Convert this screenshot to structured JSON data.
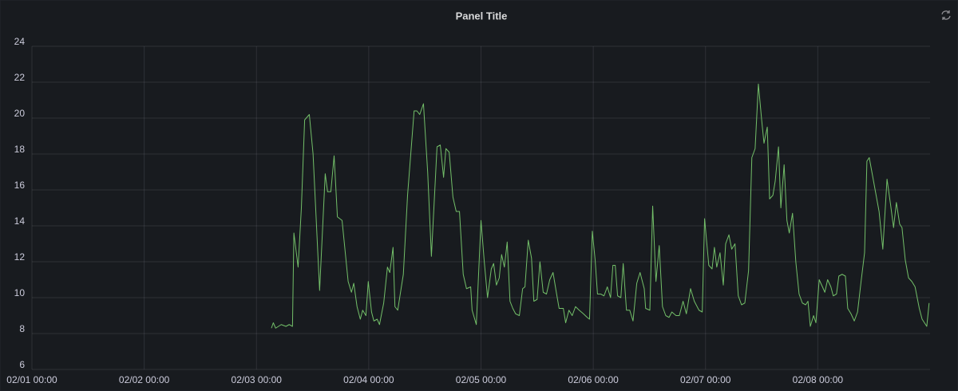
{
  "chart_data": {
    "type": "line",
    "title": "Panel Title",
    "color": "#73bf69",
    "grid": true,
    "xlim": [
      0,
      192
    ],
    "xticks": [
      {
        "value": 0,
        "label": "02/01 00:00"
      },
      {
        "value": 24,
        "label": "02/02 00:00"
      },
      {
        "value": 48,
        "label": "02/03 00:00"
      },
      {
        "value": 72,
        "label": "02/04 00:00"
      },
      {
        "value": 96,
        "label": "02/05 00:00"
      },
      {
        "value": 120,
        "label": "02/06 00:00"
      },
      {
        "value": 144,
        "label": "02/07 00:00"
      },
      {
        "value": 168,
        "label": "02/08 00:00"
      }
    ],
    "ylim": [
      6,
      24
    ],
    "yticks": [
      6,
      8,
      10,
      12,
      14,
      16,
      18,
      20,
      22,
      24
    ],
    "x": [
      51.2,
      51.6,
      52.1,
      53.3,
      54.3,
      55.0,
      55.7,
      56.0,
      56.9,
      57.6,
      58.3,
      59.3,
      60.1,
      61.5,
      62.7,
      63.2,
      63.9,
      64.6,
      65.3,
      66.3,
      67.6,
      68.3,
      68.8,
      69.5,
      70.2,
      70.7,
      71.4,
      71.9,
      72.6,
      73.1,
      73.8,
      74.3,
      75.2,
      76.0,
      76.5,
      77.2,
      77.6,
      78.2,
      79.4,
      80.3,
      81.7,
      82.3,
      82.9,
      83.7,
      84.6,
      85.4,
      86.6,
      87.3,
      88.0,
      88.5,
      89.2,
      90.0,
      90.7,
      91.4,
      92.2,
      92.9,
      93.8,
      94.1,
      95.0,
      96.0,
      96.7,
      97.4,
      98.2,
      98.7,
      99.3,
      99.9,
      100.4,
      101.0,
      101.6,
      102.2,
      102.8,
      103.4,
      104.2,
      104.9,
      105.4,
      106.1,
      106.8,
      107.3,
      108.0,
      108.6,
      109.3,
      110.0,
      110.7,
      111.4,
      112.1,
      112.7,
      113.6,
      114.1,
      114.8,
      115.5,
      116.2,
      117.0,
      117.9,
      118.7,
      119.2,
      119.8,
      120.4,
      120.9,
      121.6,
      122.3,
      123.0,
      123.7,
      124.2,
      124.7,
      125.2,
      125.9,
      126.4,
      127.1,
      127.8,
      128.5,
      129.3,
      130.0,
      130.9,
      131.2,
      132.1,
      132.7,
      133.4,
      134.1,
      134.8,
      135.5,
      136.2,
      136.8,
      137.7,
      138.4,
      139.2,
      139.9,
      140.8,
      141.6,
      142.6,
      143.3,
      143.8,
      144.7,
      145.4,
      145.9,
      146.4,
      147.1,
      147.8,
      148.3,
      149.0,
      149.6,
      150.3,
      151.0,
      151.7,
      152.4,
      153.2,
      153.9,
      154.6,
      155.3,
      156.0,
      156.5,
      157.2,
      157.7,
      158.4,
      158.9,
      159.6,
      160.1,
      160.8,
      161.4,
      161.9,
      162.6,
      163.3,
      164.0,
      164.7,
      165.4,
      165.9,
      166.4,
      167.1,
      167.6,
      168.3,
      169.0,
      169.5,
      170.1,
      170.8,
      171.3,
      172.0,
      172.5,
      173.2,
      173.9,
      174.4,
      175.1,
      175.8,
      176.5,
      177.3,
      178.0,
      178.5,
      179.0,
      179.7,
      180.4,
      181.1,
      181.9,
      182.8,
      183.6,
      184.2,
      184.8,
      185.5,
      186.0,
      186.7,
      187.4,
      188.1,
      188.8,
      189.7,
      190.3,
      191.3,
      191.8
    ],
    "values": [
      8.3,
      8.6,
      8.3,
      8.5,
      8.4,
      8.5,
      8.4,
      13.6,
      11.7,
      15,
      19.9,
      20.2,
      18,
      10.4,
      16.9,
      15.9,
      15.9,
      17.9,
      14.5,
      14.3,
      10.9,
      10.3,
      10.8,
      9.5,
      8.8,
      9.3,
      9,
      10.9,
      9.2,
      8.7,
      8.8,
      8.5,
      9.7,
      11.7,
      11.4,
      12.8,
      9.5,
      9.3,
      11.3,
      15.7,
      20.4,
      20.4,
      20.2,
      20.8,
      17,
      12.3,
      18.4,
      18.5,
      16.7,
      18.3,
      18.1,
      15.6,
      14.8,
      14.8,
      11.3,
      10.5,
      10.6,
      9.3,
      8.5,
      14.3,
      12,
      10,
      11.6,
      11.9,
      10.7,
      11.1,
      12.4,
      11.7,
      13.1,
      9.8,
      9.4,
      9.1,
      9,
      10.5,
      10.6,
      13.2,
      12.2,
      9.8,
      9.9,
      12,
      10.3,
      10.2,
      11,
      11.4,
      10.3,
      9.4,
      9.4,
      8.6,
      9.3,
      9,
      9.5,
      9.3,
      9.1,
      8.9,
      8.8,
      13.7,
      12.1,
      10.2,
      10.2,
      10.1,
      10.6,
      10,
      11.8,
      11.8,
      10.1,
      10,
      11.9,
      9.3,
      9.3,
      8.7,
      10.8,
      11.4,
      10.5,
      9.4,
      9.3,
      15.1,
      10.9,
      12.9,
      9.5,
      9,
      8.9,
      9.2,
      9,
      9,
      9.8,
      9.1,
      10.5,
      9.8,
      9.3,
      9.2,
      14.4,
      11.8,
      11.6,
      12.8,
      11.7,
      12.5,
      10.7,
      13,
      13.5,
      12.7,
      13,
      10.1,
      9.6,
      9.7,
      11.5,
      17.8,
      18.3,
      21.9,
      19.9,
      18.6,
      19.5,
      15.5,
      15.7,
      16.5,
      18.4,
      15,
      17.4,
      14.3,
      13.6,
      14.7,
      12,
      10.2,
      9.7,
      9.6,
      9.8,
      8.4,
      9,
      8.6,
      11,
      10.6,
      10.3,
      11,
      10.6,
      10.1,
      10.2,
      11.2,
      11.3,
      11.2,
      9.4,
      9.1,
      8.7,
      9.2,
      11,
      12.5,
      17.6,
      17.8,
      16.8,
      15.8,
      14.8,
      12.7,
      16.6,
      15.1,
      13.9,
      15.3,
      14.1,
      13.9,
      12.1,
      11.1,
      10.9,
      10.6,
      9.4,
      8.8,
      8.4,
      9.7
    ]
  }
}
